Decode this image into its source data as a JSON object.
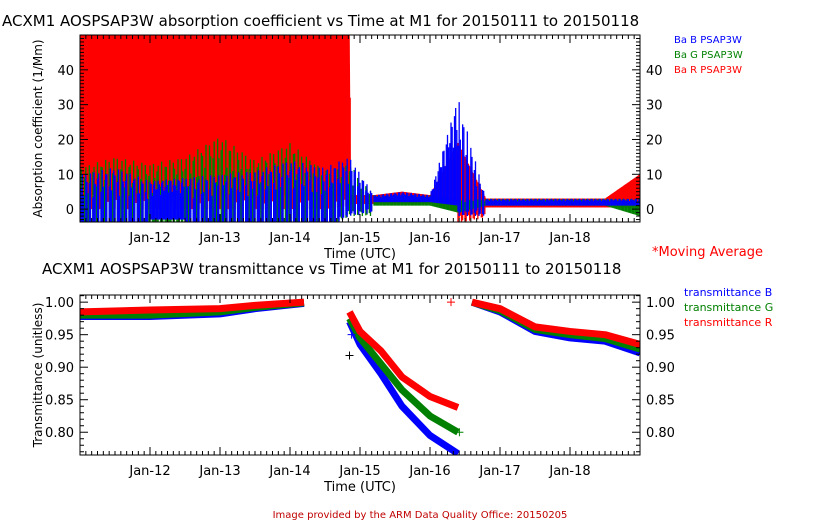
{
  "chart_data": [
    {
      "type": "line",
      "title": "ACXM1 AOSPSAP3W absorption coefficient vs Time at M1 for 20150111 to 20150118",
      "xlabel": "Time (UTC)",
      "ylabel": "Absorption coefficient (1/Mm)",
      "xlim": [
        11,
        19
      ],
      "ylim": [
        -3.7,
        50
      ],
      "x_ticks": [
        {
          "v": 12,
          "label": "Jan-12"
        },
        {
          "v": 13,
          "label": "Jan-13"
        },
        {
          "v": 14,
          "label": "Jan-14"
        },
        {
          "v": 15,
          "label": "Jan-15"
        },
        {
          "v": 16,
          "label": "Jan-16"
        },
        {
          "v": 17,
          "label": "Jan-17"
        },
        {
          "v": 18,
          "label": "Jan-18"
        }
      ],
      "y_ticks": [
        0,
        10,
        20,
        30,
        40
      ],
      "note": "*Moving Average",
      "series": [
        {
          "name": "Ba B PSAP3W",
          "color": "#0000ff",
          "ranges": [
            [
              11.0,
              -3,
              10
            ],
            [
              11.5,
              -3,
              12
            ],
            [
              12.0,
              -3,
              8
            ],
            [
              12.5,
              -3,
              9
            ],
            [
              13.0,
              -3,
              10
            ],
            [
              13.5,
              -3,
              11
            ],
            [
              14.0,
              -3,
              14
            ],
            [
              14.5,
              -3,
              12
            ],
            [
              14.85,
              1,
              15
            ],
            [
              15.2,
              2,
              4
            ],
            [
              15.6,
              2,
              5
            ],
            [
              16.0,
              2,
              4
            ],
            [
              16.4,
              1,
              32
            ],
            [
              16.8,
              1,
              3
            ],
            [
              17.5,
              1,
              3
            ],
            [
              18.5,
              1,
              3
            ],
            [
              19.0,
              1,
              3
            ]
          ]
        },
        {
          "name": "Ba G PSAP3W",
          "color": "#008000",
          "ranges": [
            [
              11.0,
              -3,
              12
            ],
            [
              11.5,
              -3,
              15
            ],
            [
              12.0,
              -3,
              13
            ],
            [
              12.5,
              -3,
              15
            ],
            [
              13.0,
              -3,
              21
            ],
            [
              13.5,
              -3,
              14
            ],
            [
              14.0,
              -3,
              19
            ],
            [
              14.5,
              -3,
              11
            ],
            [
              14.85,
              1,
              13
            ],
            [
              15.2,
              1,
              4
            ],
            [
              15.6,
              1,
              4
            ],
            [
              16.0,
              1,
              4
            ],
            [
              16.4,
              -1,
              3
            ],
            [
              16.8,
              1,
              3
            ],
            [
              17.5,
              1,
              3
            ],
            [
              18.5,
              1,
              3
            ],
            [
              19.0,
              -2,
              3
            ]
          ]
        },
        {
          "name": "Ba R PSAP3W",
          "color": "#ff0000",
          "ranges": [
            [
              11.0,
              0,
              60
            ],
            [
              11.5,
              0,
              60
            ],
            [
              12.0,
              0,
              60
            ],
            [
              12.5,
              0,
              60
            ],
            [
              13.0,
              0,
              60
            ],
            [
              13.5,
              0,
              60
            ],
            [
              14.0,
              0,
              60
            ],
            [
              14.5,
              0,
              60
            ],
            [
              14.85,
              1,
              60
            ],
            [
              14.87,
              1.5,
              4
            ],
            [
              15.2,
              1.5,
              4
            ],
            [
              15.6,
              1.5,
              5
            ],
            [
              16.0,
              1.5,
              4
            ],
            [
              16.4,
              -1,
              19
            ],
            [
              16.8,
              0.5,
              3
            ],
            [
              17.5,
              0.5,
              3
            ],
            [
              18.5,
              0.5,
              3
            ],
            [
              19.0,
              0.5,
              10
            ]
          ]
        }
      ]
    },
    {
      "type": "line",
      "title": "ACXM1 AOSPSAP3W transmittance vs Time at M1 for 20150111 to 20150118",
      "xlabel": "Time (UTC)",
      "ylabel": "Transmittance (unitless)",
      "xlim": [
        11,
        19
      ],
      "ylim": [
        0.765,
        1.011
      ],
      "x_ticks": [
        {
          "v": 12,
          "label": "Jan-12"
        },
        {
          "v": 13,
          "label": "Jan-13"
        },
        {
          "v": 14,
          "label": "Jan-14"
        },
        {
          "v": 15,
          "label": "Jan-15"
        },
        {
          "v": 16,
          "label": "Jan-16"
        },
        {
          "v": 17,
          "label": "Jan-17"
        },
        {
          "v": 18,
          "label": "Jan-18"
        }
      ],
      "y_ticks": [
        {
          "v": 0.8,
          "label": "0.80"
        },
        {
          "v": 0.85,
          "label": "0.85"
        },
        {
          "v": 0.9,
          "label": "0.90"
        },
        {
          "v": 0.95,
          "label": "0.95"
        },
        {
          "v": 1.0,
          "label": "1.00"
        }
      ],
      "series": [
        {
          "name": "transmittance B",
          "color": "#0000ff",
          "segments": [
            [
              [
                11.0,
                0.978
              ],
              [
                12.0,
                0.978
              ],
              [
                13.0,
                0.982
              ],
              [
                13.5,
                0.99
              ],
              [
                14.2,
                0.998
              ]
            ],
            [
              [
                14.85,
                0.97
              ],
              [
                15.0,
                0.935
              ],
              [
                15.3,
                0.89
              ],
              [
                15.6,
                0.84
              ],
              [
                16.0,
                0.795
              ],
              [
                16.4,
                0.767
              ]
            ],
            [
              [
                16.6,
                1.0
              ],
              [
                17.0,
                0.985
              ],
              [
                17.5,
                0.955
              ],
              [
                18.0,
                0.945
              ],
              [
                18.5,
                0.94
              ],
              [
                19.0,
                0.922
              ]
            ]
          ]
        },
        {
          "name": "transmittance G",
          "color": "#008000",
          "segments": [
            [
              [
                11.0,
                0.98
              ],
              [
                12.0,
                0.98
              ],
              [
                13.0,
                0.985
              ],
              [
                13.5,
                0.992
              ],
              [
                14.2,
                0.999
              ]
            ],
            [
              [
                14.85,
                0.975
              ],
              [
                15.0,
                0.945
              ],
              [
                15.3,
                0.905
              ],
              [
                15.6,
                0.865
              ],
              [
                16.0,
                0.825
              ],
              [
                16.4,
                0.8
              ]
            ],
            [
              [
                16.6,
                1.0
              ],
              [
                17.0,
                0.987
              ],
              [
                17.5,
                0.958
              ],
              [
                18.0,
                0.95
              ],
              [
                18.5,
                0.944
              ],
              [
                19.0,
                0.928
              ]
            ]
          ]
        },
        {
          "name": "transmittance R",
          "color": "#ff0000",
          "segments": [
            [
              [
                11.0,
                0.985
              ],
              [
                12.0,
                0.988
              ],
              [
                13.0,
                0.99
              ],
              [
                13.5,
                0.995
              ],
              [
                14.2,
                1.0
              ]
            ],
            [
              [
                14.85,
                0.985
              ],
              [
                15.0,
                0.955
              ],
              [
                15.3,
                0.925
              ],
              [
                15.6,
                0.885
              ],
              [
                16.0,
                0.855
              ],
              [
                16.4,
                0.838
              ]
            ],
            [
              [
                16.6,
                1.0
              ],
              [
                17.0,
                0.99
              ],
              [
                17.5,
                0.962
              ],
              [
                18.0,
                0.955
              ],
              [
                18.5,
                0.95
              ],
              [
                19.0,
                0.935
              ]
            ]
          ]
        }
      ]
    }
  ],
  "footer": "Image provided by the ARM Data Quality Office: 20150205"
}
